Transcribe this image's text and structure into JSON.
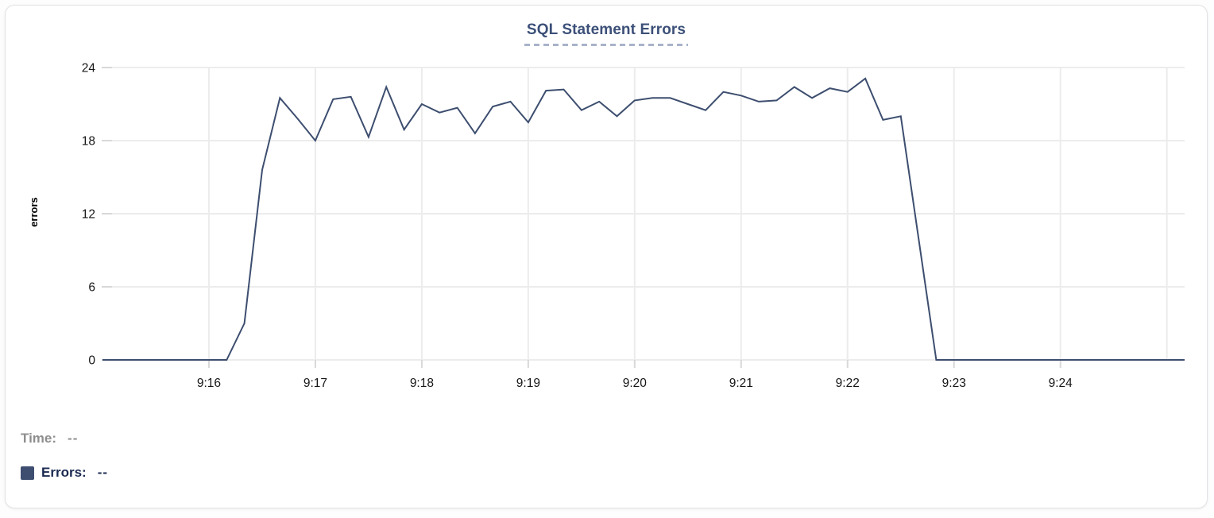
{
  "chart_data": {
    "type": "line",
    "title": "SQL Statement Errors",
    "xlabel": "",
    "ylabel": "errors",
    "series_name": "Errors",
    "line_color": "#3d4e6f",
    "grid": true,
    "legend_position": "bottom-left",
    "ylim": [
      0,
      24
    ],
    "y_ticks": [
      0,
      6,
      12,
      18,
      24
    ],
    "x_ticks": [
      "9:16",
      "9:17",
      "9:18",
      "9:19",
      "9:20",
      "9:21",
      "9:22",
      "9:23",
      "9:24"
    ],
    "x_range": [
      "9:15:00",
      "9:25:10"
    ],
    "points": [
      [
        "9:15:00",
        0
      ],
      [
        "9:15:10",
        0
      ],
      [
        "9:15:20",
        0
      ],
      [
        "9:15:30",
        0
      ],
      [
        "9:15:40",
        0
      ],
      [
        "9:15:50",
        0
      ],
      [
        "9:16:00",
        0
      ],
      [
        "9:16:10",
        0
      ],
      [
        "9:16:20",
        3
      ],
      [
        "9:16:30",
        15.6
      ],
      [
        "9:16:40",
        21.5
      ],
      [
        "9:16:50",
        19.8
      ],
      [
        "9:17:00",
        18
      ],
      [
        "9:17:10",
        21.4
      ],
      [
        "9:17:20",
        21.6
      ],
      [
        "9:17:30",
        18.3
      ],
      [
        "9:17:40",
        22.4
      ],
      [
        "9:17:50",
        18.9
      ],
      [
        "9:18:00",
        21
      ],
      [
        "9:18:10",
        20.3
      ],
      [
        "9:18:20",
        20.7
      ],
      [
        "9:18:30",
        18.6
      ],
      [
        "9:18:40",
        20.8
      ],
      [
        "9:18:50",
        21.2
      ],
      [
        "9:19:00",
        19.5
      ],
      [
        "9:19:10",
        22.1
      ],
      [
        "9:19:20",
        22.2
      ],
      [
        "9:19:30",
        20.5
      ],
      [
        "9:19:40",
        21.2
      ],
      [
        "9:19:50",
        20.0
      ],
      [
        "9:20:00",
        21.3
      ],
      [
        "9:20:10",
        21.5
      ],
      [
        "9:20:20",
        21.5
      ],
      [
        "9:20:30",
        21.0
      ],
      [
        "9:20:40",
        20.5
      ],
      [
        "9:20:50",
        22.0
      ],
      [
        "9:21:00",
        21.7
      ],
      [
        "9:21:10",
        21.2
      ],
      [
        "9:21:20",
        21.3
      ],
      [
        "9:21:30",
        22.4
      ],
      [
        "9:21:40",
        21.5
      ],
      [
        "9:21:50",
        22.3
      ],
      [
        "9:22:00",
        22.0
      ],
      [
        "9:22:10",
        23.1
      ],
      [
        "9:22:20",
        19.7
      ],
      [
        "9:22:30",
        20.0
      ],
      [
        "9:22:40",
        10
      ],
      [
        "9:22:50",
        0
      ],
      [
        "9:23:00",
        0
      ],
      [
        "9:23:10",
        0
      ],
      [
        "9:23:20",
        0
      ],
      [
        "9:23:30",
        0
      ],
      [
        "9:23:40",
        0
      ],
      [
        "9:23:50",
        0
      ],
      [
        "9:24:00",
        0
      ],
      [
        "9:24:10",
        0
      ],
      [
        "9:24:20",
        0
      ],
      [
        "9:24:30",
        0
      ],
      [
        "9:24:40",
        0
      ],
      [
        "9:24:50",
        0
      ],
      [
        "9:25:00",
        0
      ],
      [
        "9:25:10",
        0
      ]
    ]
  },
  "legend": {
    "time_label": "Time:",
    "time_value": "--",
    "errors_label": "Errors:",
    "errors_value": "--",
    "swatch_color": "#3d4e70"
  },
  "colors": {
    "title": "#3c5078",
    "title_underline": "#a9b3ca",
    "gridline": "#ececec",
    "axis_tick": "#d8d8d8",
    "axis_text": "#161616",
    "line": "#3d4e6f",
    "legend_time": "#8e8e8e",
    "legend_errors": "#1b2a50",
    "card_border": "#e2e2e6"
  }
}
